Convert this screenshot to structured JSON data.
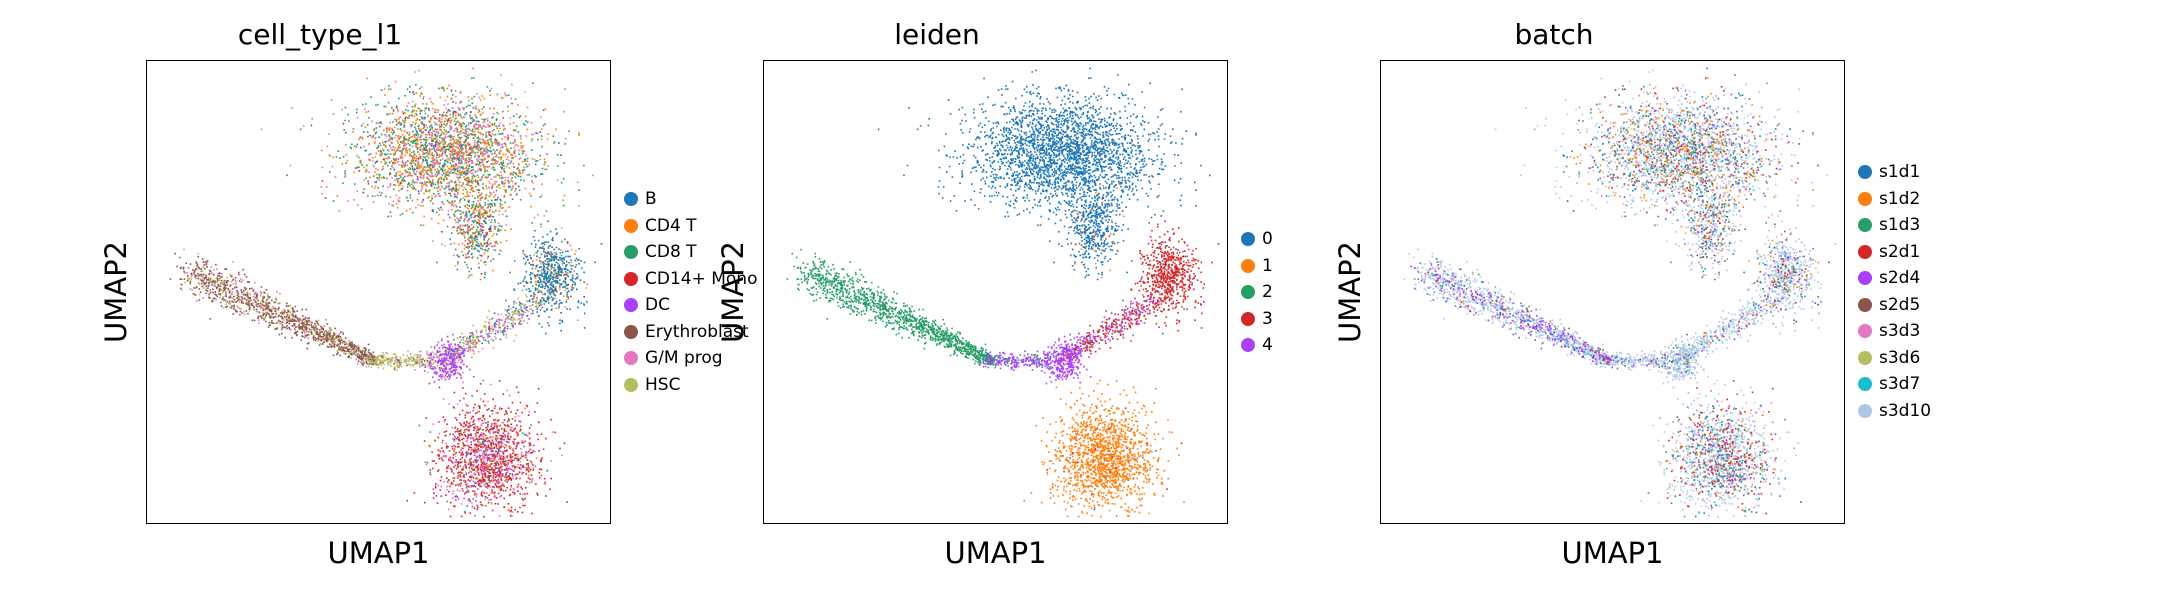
{
  "chart_data": [
    {
      "type": "scatter",
      "title": "cell_type_l1",
      "xlabel": "UMAP1",
      "ylabel": "UMAP2",
      "ticks_shown": false,
      "legend_placement": "right",
      "categories": [
        {
          "name": "B",
          "color": "#1f77b4"
        },
        {
          "name": "CD4 T",
          "color": "#ff7f0e"
        },
        {
          "name": "CD8 T",
          "color": "#279e68"
        },
        {
          "name": "CD14+ Mono",
          "color": "#d62728"
        },
        {
          "name": "DC",
          "color": "#aa40fc"
        },
        {
          "name": "Erythroblast",
          "color": "#8c564b"
        },
        {
          "name": "G/M prog",
          "color": "#e377c2"
        },
        {
          "name": "HSC",
          "color": "#b5bd61"
        }
      ]
    },
    {
      "type": "scatter",
      "title": "leiden",
      "xlabel": "UMAP1",
      "ylabel": "UMAP2",
      "ticks_shown": false,
      "legend_placement": "right",
      "categories": [
        {
          "name": "0",
          "color": "#1f77b4"
        },
        {
          "name": "1",
          "color": "#ff7f0e"
        },
        {
          "name": "2",
          "color": "#279e68"
        },
        {
          "name": "3",
          "color": "#d62728"
        },
        {
          "name": "4",
          "color": "#aa40fc"
        }
      ]
    },
    {
      "type": "scatter",
      "title": "batch",
      "xlabel": "UMAP1",
      "ylabel": "UMAP2",
      "ticks_shown": false,
      "legend_placement": "right",
      "categories": [
        {
          "name": "s1d1",
          "color": "#1f77b4"
        },
        {
          "name": "s1d2",
          "color": "#ff7f0e"
        },
        {
          "name": "s1d3",
          "color": "#279e68"
        },
        {
          "name": "s2d1",
          "color": "#d62728"
        },
        {
          "name": "s2d4",
          "color": "#aa40fc"
        },
        {
          "name": "s2d5",
          "color": "#8c564b"
        },
        {
          "name": "s3d3",
          "color": "#e377c2"
        },
        {
          "name": "s3d6",
          "color": "#b5bd61"
        },
        {
          "name": "s3d7",
          "color": "#17becf"
        },
        {
          "name": "s3d10",
          "color": "#aec7e8"
        }
      ]
    }
  ]
}
